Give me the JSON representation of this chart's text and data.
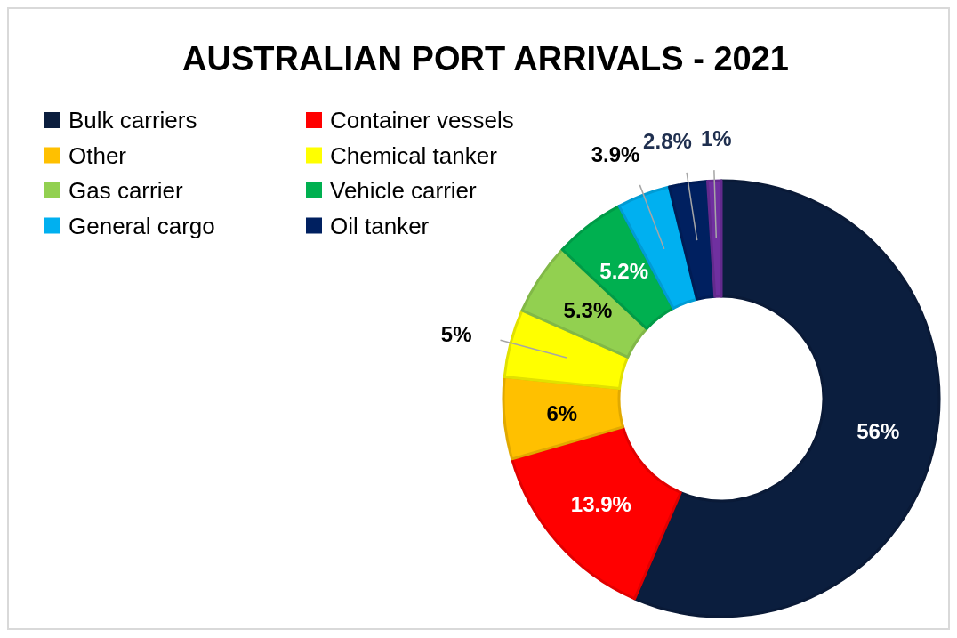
{
  "chart_data": {
    "type": "donut",
    "title": "AUSTRALIAN PORT ARRIVALS - 2021",
    "categories": [
      "Bulk carriers",
      "Container vessels",
      "Other",
      "Chemical tanker",
      "Gas carrier",
      "Vehicle carrier",
      "General cargo",
      "Oil tanker",
      null
    ],
    "values": [
      56,
      13.9,
      6,
      5,
      5.3,
      5.2,
      3.9,
      2.8,
      1
    ],
    "colors": [
      "#0b1e3e",
      "#ff0000",
      "#ffc000",
      "#ffff00",
      "#92d050",
      "#00b050",
      "#00b0f0",
      "#002060",
      "#7030a0"
    ],
    "value_labels": [
      "56%",
      "13.9%",
      "6%",
      "5%",
      "5.3%",
      "5.2%",
      "3.9%",
      "2.8%",
      "1%"
    ],
    "legend": "top left"
  }
}
